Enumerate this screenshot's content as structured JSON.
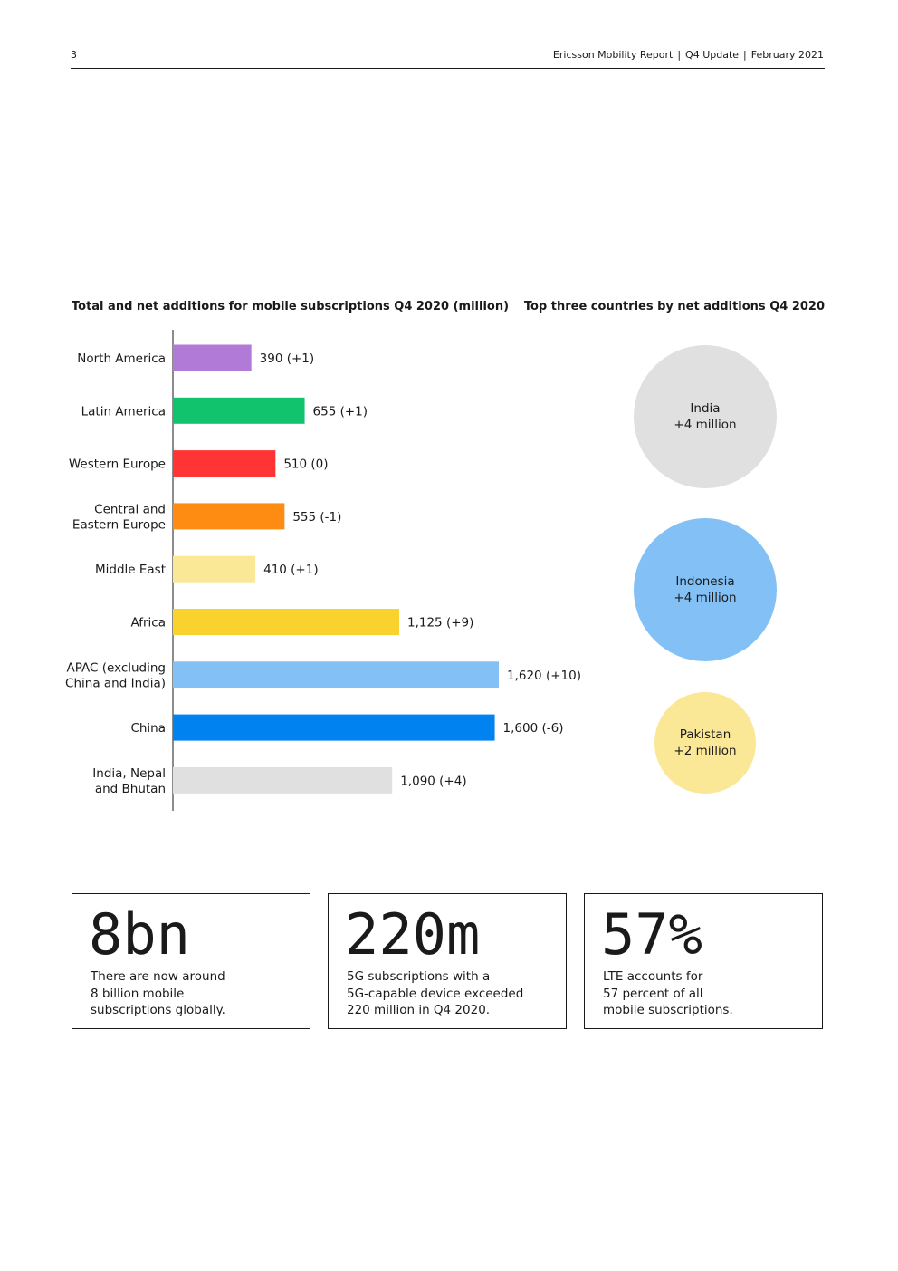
{
  "header": {
    "page_number": "3",
    "report": "Ericsson Mobility Report",
    "edition": "Q4 Update",
    "date": "February 2021"
  },
  "chart_title": "Total and net additions for mobile subscriptions Q4 2020 (million)",
  "top3_title": "Top three countries by net additions Q4 2020",
  "chart_data": [
    {
      "type": "bar",
      "orientation": "horizontal",
      "title": "Total and net additions for mobile subscriptions Q4 2020 (million)",
      "categories": [
        [
          "North America"
        ],
        [
          "Latin America"
        ],
        [
          "Western Europe"
        ],
        [
          "Central and",
          "Eastern Europe"
        ],
        [
          "Middle East"
        ],
        [
          "Africa"
        ],
        [
          "APAC (excluding",
          "China and India)"
        ],
        [
          "China"
        ],
        [
          "India, Nepal",
          "and Bhutan"
        ]
      ],
      "values": [
        390,
        655,
        510,
        555,
        410,
        1125,
        1620,
        1600,
        1090
      ],
      "net_additions": [
        1,
        1,
        0,
        -1,
        1,
        9,
        10,
        -6,
        4
      ],
      "data_labels": [
        "390 (+1)",
        "655 (+1)",
        "510 (0)",
        "555 (-1)",
        "410 (+1)",
        "1,125 (+9)",
        "1,620 (+10)",
        "1,600 (-6)",
        "1,090 (+4)"
      ],
      "colors": [
        "#b07ad6",
        "#12c36e",
        "#ff3535",
        "#ff8c12",
        "#fae896",
        "#fad22d",
        "#82c0f5",
        "#0082f0",
        "#e0e0e0"
      ],
      "xlim": [
        0,
        1700
      ],
      "grid": false,
      "legend": "none"
    },
    {
      "type": "bubble",
      "title": "Top three countries by net additions Q4 2020",
      "items": [
        {
          "country": "India",
          "label": "+4 million",
          "value": 4,
          "color": "#e0e0e0"
        },
        {
          "country": "Indonesia",
          "label": "+4 million",
          "value": 4,
          "color": "#82c0f5"
        },
        {
          "country": "Pakistan",
          "label": "+2 million",
          "value": 2,
          "color": "#fae896"
        }
      ]
    }
  ],
  "stats": [
    {
      "value": "8bn",
      "lines": [
        "There are now around",
        "8 billion mobile",
        "subscriptions globally."
      ]
    },
    {
      "value": "220m",
      "lines": [
        "5G subscriptions with a",
        "5G-capable device exceeded",
        "220 million in Q4 2020."
      ]
    },
    {
      "value": "57%",
      "lines": [
        "LTE accounts for",
        "57 percent of all",
        "mobile subscriptions."
      ]
    }
  ]
}
